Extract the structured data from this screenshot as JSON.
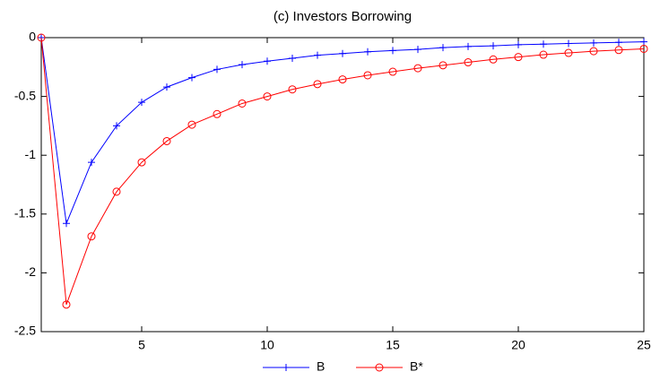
{
  "chart_data": {
    "type": "line",
    "title": "(c) Investors Borrowing",
    "x": [
      1,
      2,
      3,
      4,
      5,
      6,
      7,
      8,
      9,
      10,
      11,
      12,
      13,
      14,
      15,
      16,
      17,
      18,
      19,
      20,
      21,
      22,
      23,
      24,
      25
    ],
    "series": [
      {
        "name": "B",
        "color": "#0000ff",
        "marker": "plus",
        "values": [
          0,
          -1.58,
          -1.06,
          -0.75,
          -0.55,
          -0.42,
          -0.34,
          -0.27,
          -0.23,
          -0.2,
          -0.175,
          -0.15,
          -0.135,
          -0.12,
          -0.11,
          -0.1,
          -0.085,
          -0.075,
          -0.07,
          -0.06,
          -0.055,
          -0.05,
          -0.045,
          -0.04,
          -0.035
        ]
      },
      {
        "name": "B*",
        "color": "#ff0000",
        "marker": "circle",
        "values": [
          0,
          -2.27,
          -1.69,
          -1.31,
          -1.06,
          -0.88,
          -0.74,
          -0.65,
          -0.56,
          -0.5,
          -0.44,
          -0.395,
          -0.355,
          -0.32,
          -0.29,
          -0.26,
          -0.235,
          -0.21,
          -0.185,
          -0.165,
          -0.145,
          -0.13,
          -0.115,
          -0.105,
          -0.095
        ]
      }
    ],
    "xlim": [
      1,
      25
    ],
    "xticks": [
      5,
      10,
      15,
      20,
      25
    ],
    "ylim": [
      -2.5,
      0
    ],
    "yticks": [
      -2.5,
      -2,
      -1.5,
      -1,
      -0.5,
      0
    ],
    "grid": false,
    "legend": "bottom"
  }
}
